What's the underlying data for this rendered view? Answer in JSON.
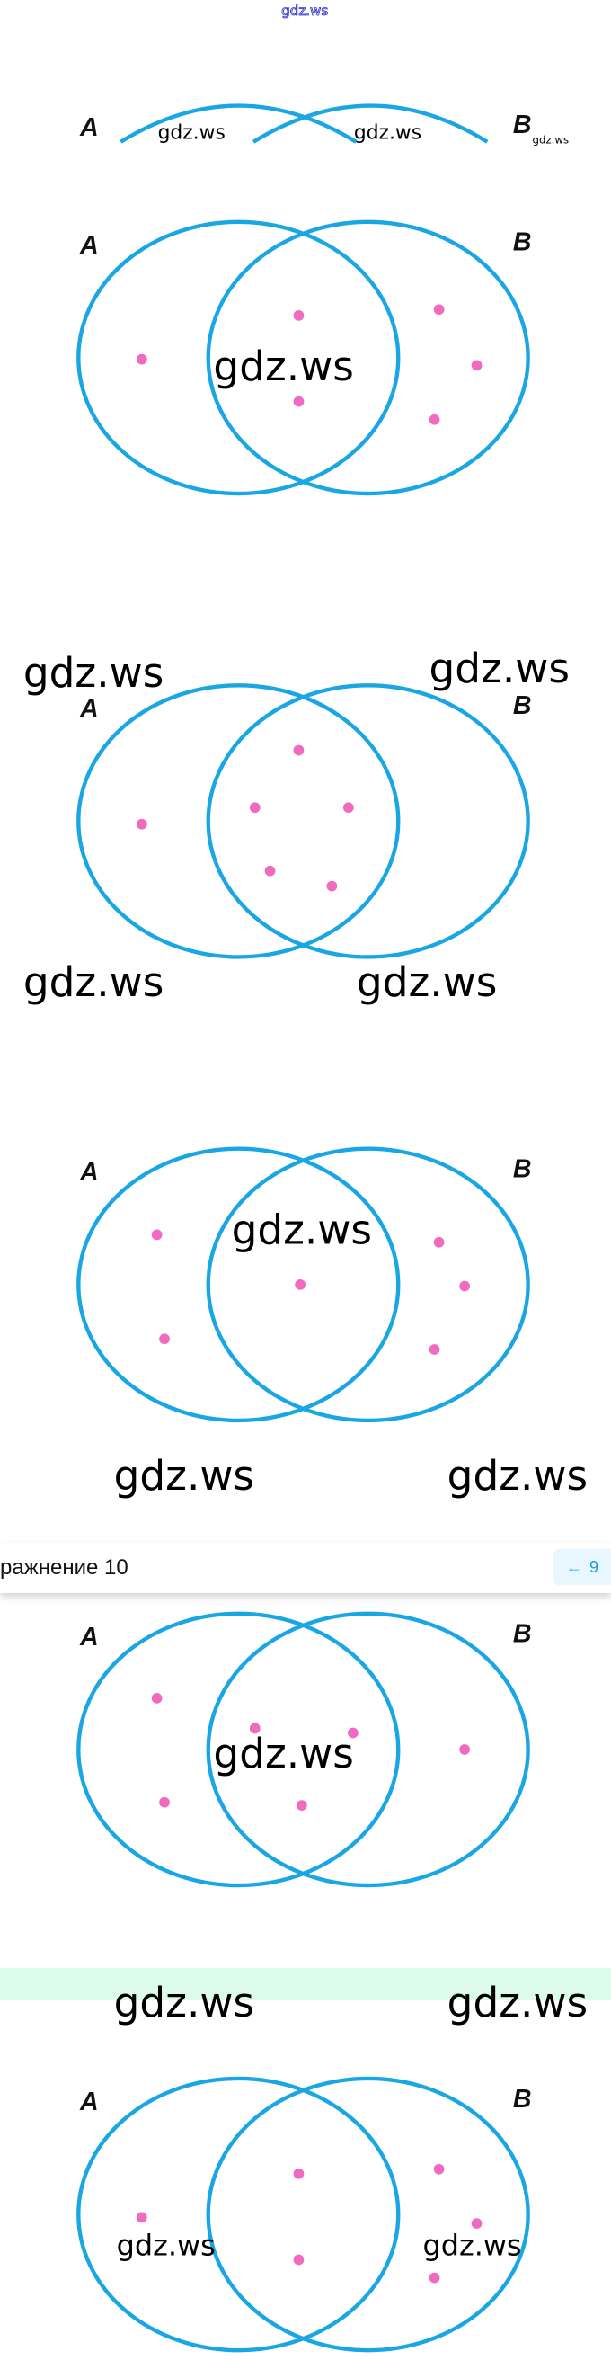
{
  "watermark": "gdz.ws",
  "set_labels": {
    "a": "A",
    "b": "B"
  },
  "toolbar": {
    "title": "ражнение 10",
    "prev_arrow": "←",
    "prev_number": "9"
  },
  "colors": {
    "circle": "#1aa6e4",
    "dot": "#f06bc0",
    "band": "#dcfce9",
    "nav_bg": "#e8f7fd"
  }
}
